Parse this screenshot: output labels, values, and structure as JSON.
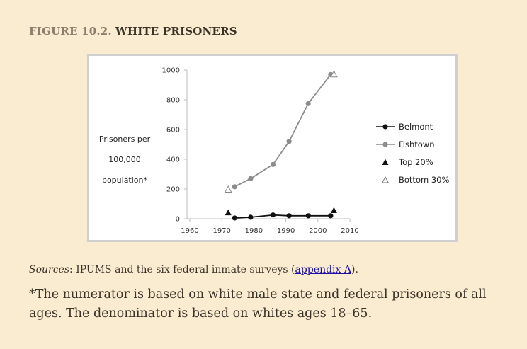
{
  "figure": {
    "number": "FIGURE 10.2.",
    "title": "WHITE PRISONERS"
  },
  "ylabel_lines": [
    "Prisoners per",
    "100,000",
    "population*"
  ],
  "sources": {
    "label": "Sources",
    "text": ": IPUMS and the six federal inmate surveys (",
    "link": "appendix A",
    "end": ")."
  },
  "note": "*The numerator is based on white male state and federal prisoners of all ages. The denominator is based on whites ages 18–65.",
  "colors": {
    "belmont": "#111111",
    "fishtown": "#8c8c8c",
    "top20": "#111111",
    "bottom30": "#888888",
    "axis": "#bdbdbd",
    "page_bg": "#faecd0"
  },
  "chart_data": {
    "type": "line",
    "title": "WHITE PRISONERS",
    "ylabel": "Prisoners per 100,000 population*",
    "xlabel": "",
    "xlim": [
      1960,
      2010
    ],
    "ylim": [
      0,
      1000
    ],
    "xticks": [
      1960,
      1970,
      1980,
      1990,
      2000,
      2010
    ],
    "yticks": [
      0,
      200,
      400,
      600,
      800,
      1000
    ],
    "grid": false,
    "legend_position": "right",
    "series": [
      {
        "name": "Belmont",
        "marker": "filled-circle",
        "line": true,
        "x": [
          1974,
          1979,
          1986,
          1991,
          1997,
          2004
        ],
        "y": [
          5,
          10,
          25,
          20,
          20,
          20
        ]
      },
      {
        "name": "Fishtown",
        "marker": "filled-circle",
        "line": true,
        "x": [
          1974,
          1979,
          1986,
          1991,
          1997,
          2004
        ],
        "y": [
          215,
          270,
          365,
          520,
          775,
          970
        ]
      },
      {
        "name": "Top 20%",
        "marker": "filled-triangle",
        "line": false,
        "x": [
          1972,
          2005
        ],
        "y": [
          40,
          55
        ]
      },
      {
        "name": "Bottom 30%",
        "marker": "open-triangle",
        "line": false,
        "x": [
          1972,
          2005
        ],
        "y": [
          195,
          970
        ]
      }
    ]
  }
}
